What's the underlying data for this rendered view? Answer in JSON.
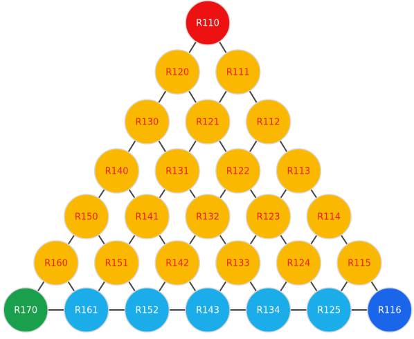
{
  "rows": [
    [
      "R110"
    ],
    [
      "R120",
      "R111"
    ],
    [
      "R130",
      "R121",
      "R112"
    ],
    [
      "R140",
      "R131",
      "R122",
      "R113"
    ],
    [
      "R150",
      "R141",
      "R132",
      "R123",
      "R114"
    ],
    [
      "R160",
      "R151",
      "R142",
      "R133",
      "R124",
      "R115"
    ],
    [
      "R170",
      "R161",
      "R152",
      "R143",
      "R134",
      "R125",
      "R116"
    ]
  ]
}
